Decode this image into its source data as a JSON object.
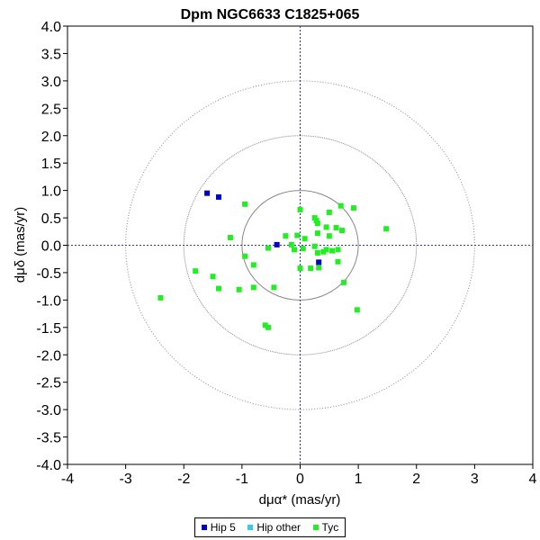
{
  "chart_data": {
    "type": "scatter",
    "title": "Dpm NGC6633  C1825+065",
    "xlabel": "dμα* (mas/yr)",
    "ylabel": "dμδ (mas/yr)",
    "xlim": [
      -4,
      4
    ],
    "ylim": [
      -4.0,
      4.0
    ],
    "x_ticks": [
      "-4",
      "-3",
      "-2",
      "-1",
      "0",
      "1",
      "2",
      "3",
      "4"
    ],
    "y_ticks": [
      "4.0",
      "3.5",
      "3.0",
      "2.5",
      "2.0",
      "1.5",
      "1.0",
      "0.5",
      "0.0",
      "-0.5",
      "-1.0",
      "-1.5",
      "-2.0",
      "-2.5",
      "-3.0",
      "-3.5",
      "-4.0"
    ],
    "reference_circles": [
      1,
      2,
      3
    ],
    "legend_position": "bottom",
    "series": [
      {
        "name": "Hip 5",
        "color": "#0000cc",
        "points": [
          [
            -1.6,
            0.95
          ],
          [
            -1.4,
            0.88
          ],
          [
            -0.4,
            0.01
          ],
          [
            0.32,
            -0.31
          ]
        ]
      },
      {
        "name": "Hip other",
        "color": "#33ccee",
        "points": []
      },
      {
        "name": "Tyc",
        "color": "#22ee22",
        "points": [
          [
            -2.4,
            -0.96
          ],
          [
            -1.8,
            -0.47
          ],
          [
            -1.5,
            -0.57
          ],
          [
            -1.4,
            -0.79
          ],
          [
            -1.2,
            0.14
          ],
          [
            -1.05,
            -0.81
          ],
          [
            -0.95,
            0.75
          ],
          [
            -0.95,
            -0.2
          ],
          [
            -0.8,
            -0.36
          ],
          [
            -0.8,
            -0.77
          ],
          [
            -0.6,
            -1.46
          ],
          [
            -0.55,
            -1.5
          ],
          [
            -0.55,
            -0.05
          ],
          [
            -0.45,
            -0.77
          ],
          [
            -0.25,
            0.17
          ],
          [
            -0.15,
            0.01
          ],
          [
            -0.1,
            -0.08
          ],
          [
            -0.05,
            0.18
          ],
          [
            0.0,
            -0.42
          ],
          [
            0.0,
            0.65
          ],
          [
            0.05,
            -0.06
          ],
          [
            0.08,
            0.12
          ],
          [
            0.18,
            -0.42
          ],
          [
            0.25,
            0.5
          ],
          [
            0.25,
            -0.02
          ],
          [
            0.28,
            0.45
          ],
          [
            0.3,
            0.4
          ],
          [
            0.3,
            0.22
          ],
          [
            0.3,
            -0.14
          ],
          [
            0.32,
            -0.41
          ],
          [
            0.4,
            -0.12
          ],
          [
            0.45,
            0.33
          ],
          [
            0.45,
            -0.08
          ],
          [
            0.5,
            0.17
          ],
          [
            0.5,
            0.6
          ],
          [
            0.55,
            -0.1
          ],
          [
            0.62,
            0.32
          ],
          [
            0.65,
            -0.08
          ],
          [
            0.65,
            -0.3
          ],
          [
            0.7,
            0.72
          ],
          [
            0.72,
            0.27
          ],
          [
            0.75,
            -0.68
          ],
          [
            0.92,
            0.68
          ],
          [
            0.98,
            -1.18
          ],
          [
            1.48,
            0.3
          ]
        ]
      }
    ]
  }
}
